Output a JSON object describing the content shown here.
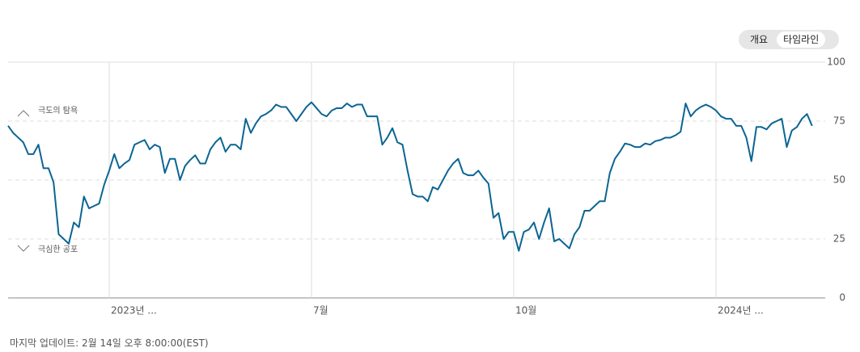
{
  "tabs": [
    "개요",
    "타임라인"
  ],
  "footer": "마지막 업데이트: 2월 14일 오후 8:00:00(EST)",
  "chart_data": {
    "type": "line",
    "annotations": [
      "극도의 탐욕",
      "극심한 공포"
    ],
    "categories": [
      null,
      null,
      null,
      null,
      null,
      null,
      null,
      null,
      null,
      null,
      null,
      null,
      null,
      null,
      null,
      null,
      null,
      null,
      null,
      null,
      "2023년 ...",
      null,
      null,
      null,
      null,
      null,
      null,
      null,
      null,
      null,
      null,
      null,
      null,
      null,
      null,
      null,
      null,
      null,
      null,
      null,
      null,
      null,
      null,
      null,
      null,
      null,
      null,
      null,
      null,
      null,
      null,
      null,
      null,
      null,
      null,
      null,
      null,
      null,
      null,
      null,
      "7월",
      null,
      null,
      null,
      null,
      null,
      null,
      null,
      null,
      null,
      null,
      null,
      null,
      null,
      null,
      null,
      null,
      null,
      null,
      null,
      null,
      null,
      null,
      null,
      null,
      null,
      null,
      null,
      null,
      null,
      null,
      null,
      null,
      null,
      null,
      null,
      null,
      null,
      null,
      null,
      "10월",
      null,
      null,
      null,
      null,
      null,
      null,
      null,
      null,
      null,
      null,
      null,
      null,
      null,
      null,
      null,
      null,
      null,
      null,
      null,
      null,
      null,
      null,
      null,
      null,
      null,
      null,
      null,
      null,
      null,
      null,
      null,
      null,
      null,
      null,
      null,
      null,
      null,
      null,
      null,
      "2024년 ...",
      null,
      null,
      null,
      null,
      null,
      null,
      null,
      null,
      null,
      null,
      null,
      null,
      null,
      null,
      null,
      null,
      null,
      null,
      null
    ],
    "values": [
      73,
      70,
      68,
      66,
      61,
      61,
      65,
      55,
      55,
      49,
      27,
      25,
      23,
      32,
      30,
      43,
      38,
      39,
      40,
      48,
      54,
      61,
      55,
      57,
      58.5,
      65,
      66,
      67,
      63,
      65,
      64,
      53,
      59,
      59,
      50,
      56,
      58.5,
      60.5,
      57,
      57,
      63,
      66,
      68,
      62,
      65,
      65,
      63,
      76,
      70,
      74,
      77,
      78,
      79.5,
      82,
      81,
      81,
      78,
      75,
      78,
      81,
      83,
      80.5,
      78,
      77,
      79.5,
      80.5,
      80.5,
      82.5,
      81,
      82,
      82,
      77,
      77,
      77,
      65,
      68,
      72,
      66,
      65,
      54,
      44,
      43,
      43,
      41,
      47,
      46,
      50,
      54,
      57,
      59,
      53,
      52,
      52,
      54,
      51,
      48.5,
      34,
      36,
      25,
      28,
      28,
      20,
      28,
      29,
      32,
      25,
      32,
      38,
      24,
      25,
      23,
      21,
      27,
      30,
      37,
      37,
      39,
      41,
      41,
      53,
      59,
      62,
      65.5,
      65,
      64,
      64,
      65.5,
      65,
      66.5,
      67,
      68,
      68,
      69,
      70.5,
      82.5,
      77,
      79.5,
      81,
      82,
      81,
      79.5,
      77,
      76,
      76,
      73,
      73,
      68,
      58,
      72.5,
      72.5,
      71.5,
      74,
      75,
      76,
      64,
      71,
      72.5,
      76,
      78,
      73
    ],
    "color": "#0b6593",
    "ylim": [
      0,
      100
    ],
    "yticks": [
      0,
      25,
      50,
      75,
      100
    ],
    "grid": true
  }
}
